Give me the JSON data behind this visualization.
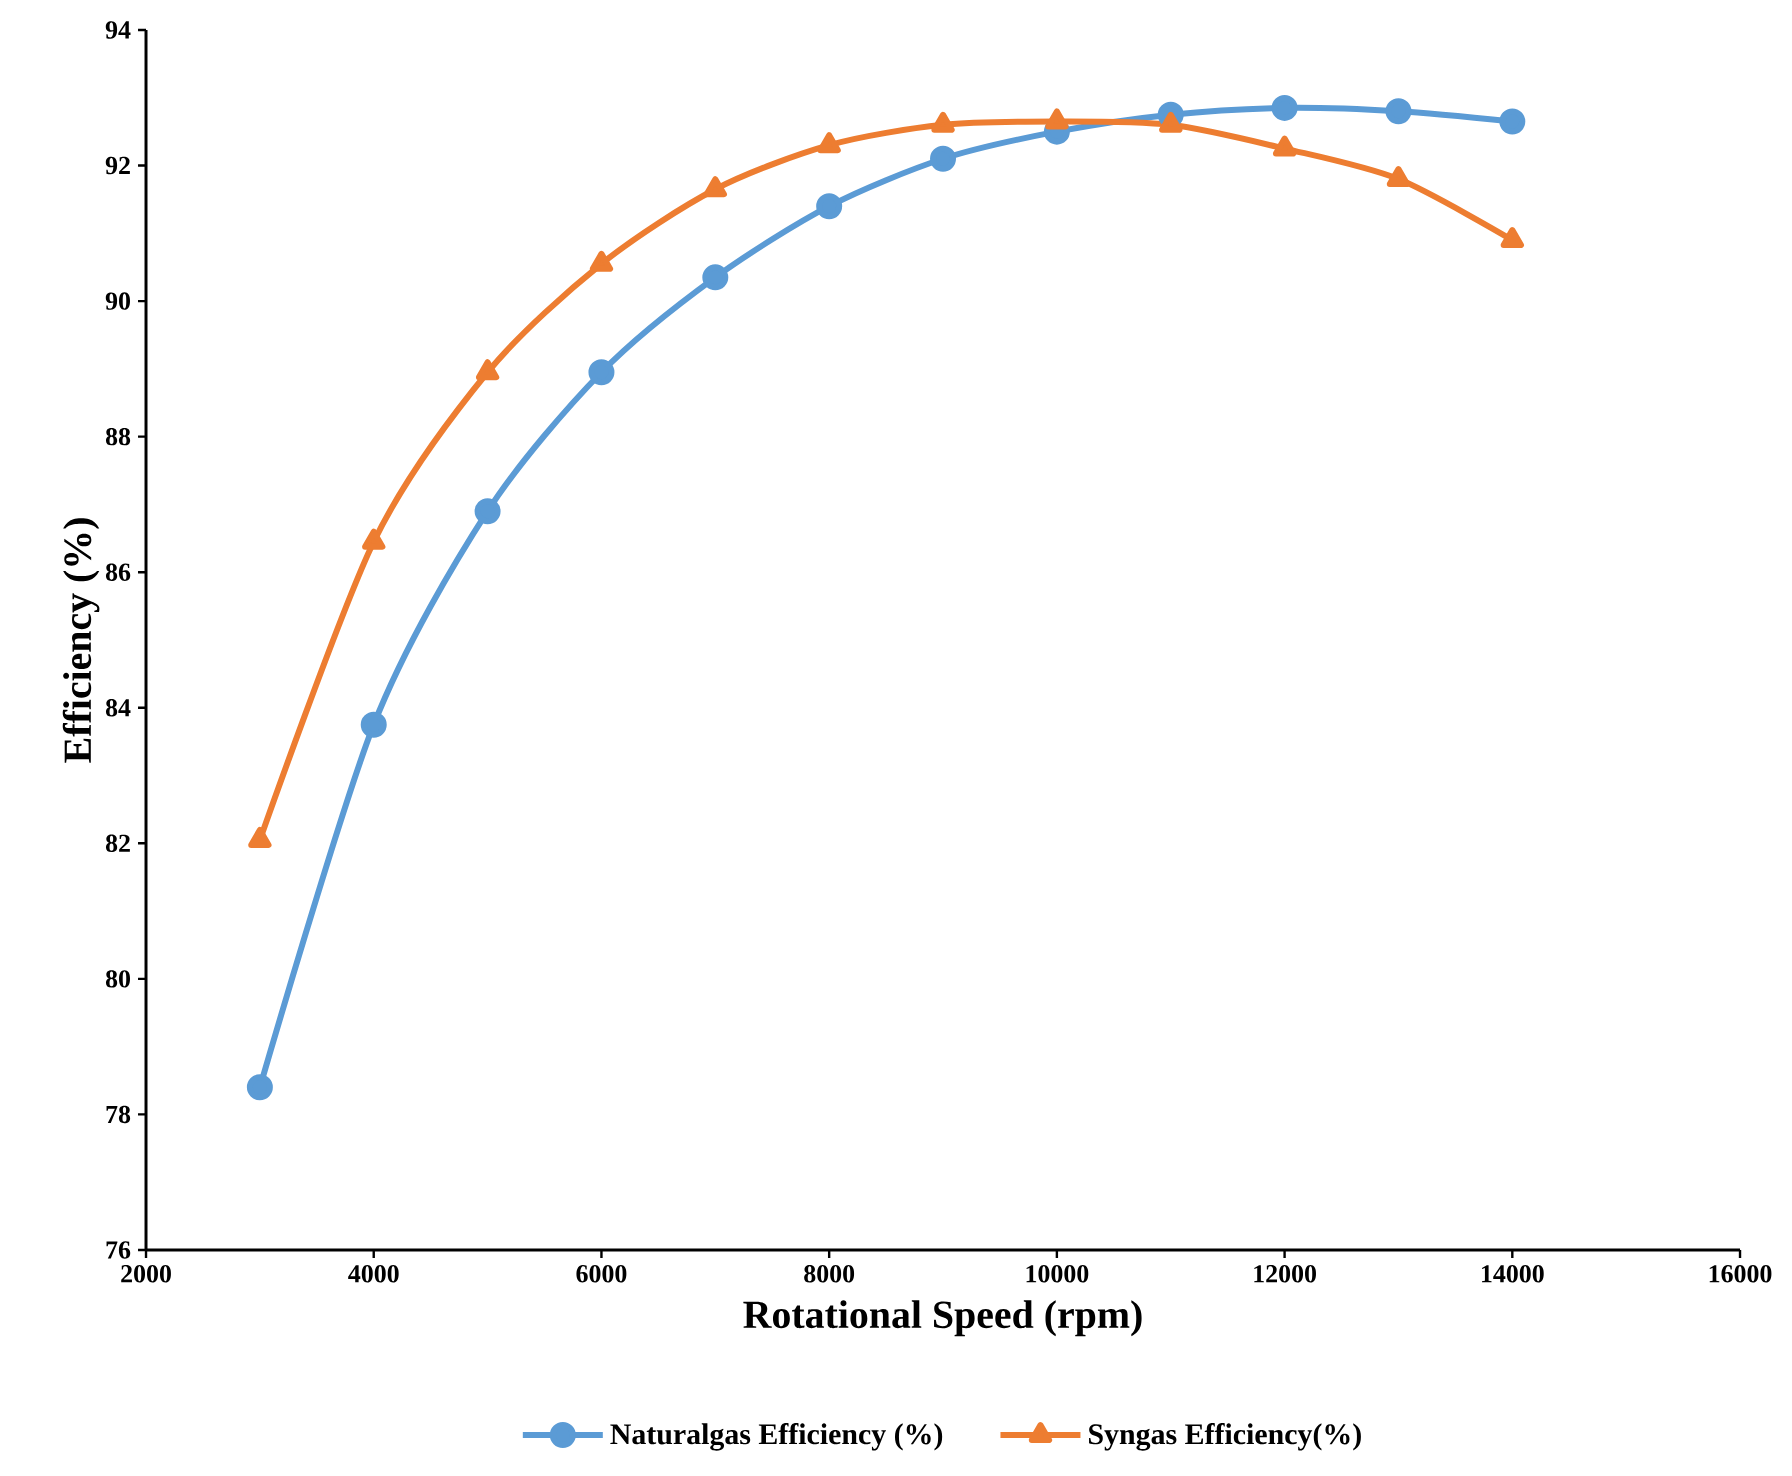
{
  "chart_data": {
    "type": "line",
    "xlabel": "Rotational Speed (rpm)",
    "ylabel": "Efficiency (%)",
    "x": [
      3000,
      4000,
      5000,
      6000,
      7000,
      8000,
      9000,
      10000,
      11000,
      12000,
      13000,
      14000
    ],
    "series": [
      {
        "name": "Naturalgas Efficiency (%)",
        "color": "#5b9bd5",
        "marker": "circle",
        "values": [
          78.4,
          83.75,
          86.9,
          88.95,
          90.35,
          91.4,
          92.1,
          92.5,
          92.75,
          92.85,
          92.8,
          92.65
        ]
      },
      {
        "name": "Syngas Efficiency(%)",
        "color": "#ed7d31",
        "marker": "triangle",
        "values": [
          82.05,
          86.45,
          88.95,
          90.55,
          91.65,
          92.3,
          92.6,
          92.65,
          92.6,
          92.25,
          91.8,
          90.9
        ]
      }
    ],
    "xlim": [
      2000,
      16000
    ],
    "xticks": [
      2000,
      4000,
      6000,
      8000,
      10000,
      12000,
      14000,
      16000
    ],
    "ylim": [
      76,
      94
    ],
    "yticks": [
      76,
      78,
      80,
      82,
      84,
      86,
      88,
      90,
      92,
      94
    ],
    "grid": false,
    "legend": "bottom",
    "line_style": "solid"
  }
}
